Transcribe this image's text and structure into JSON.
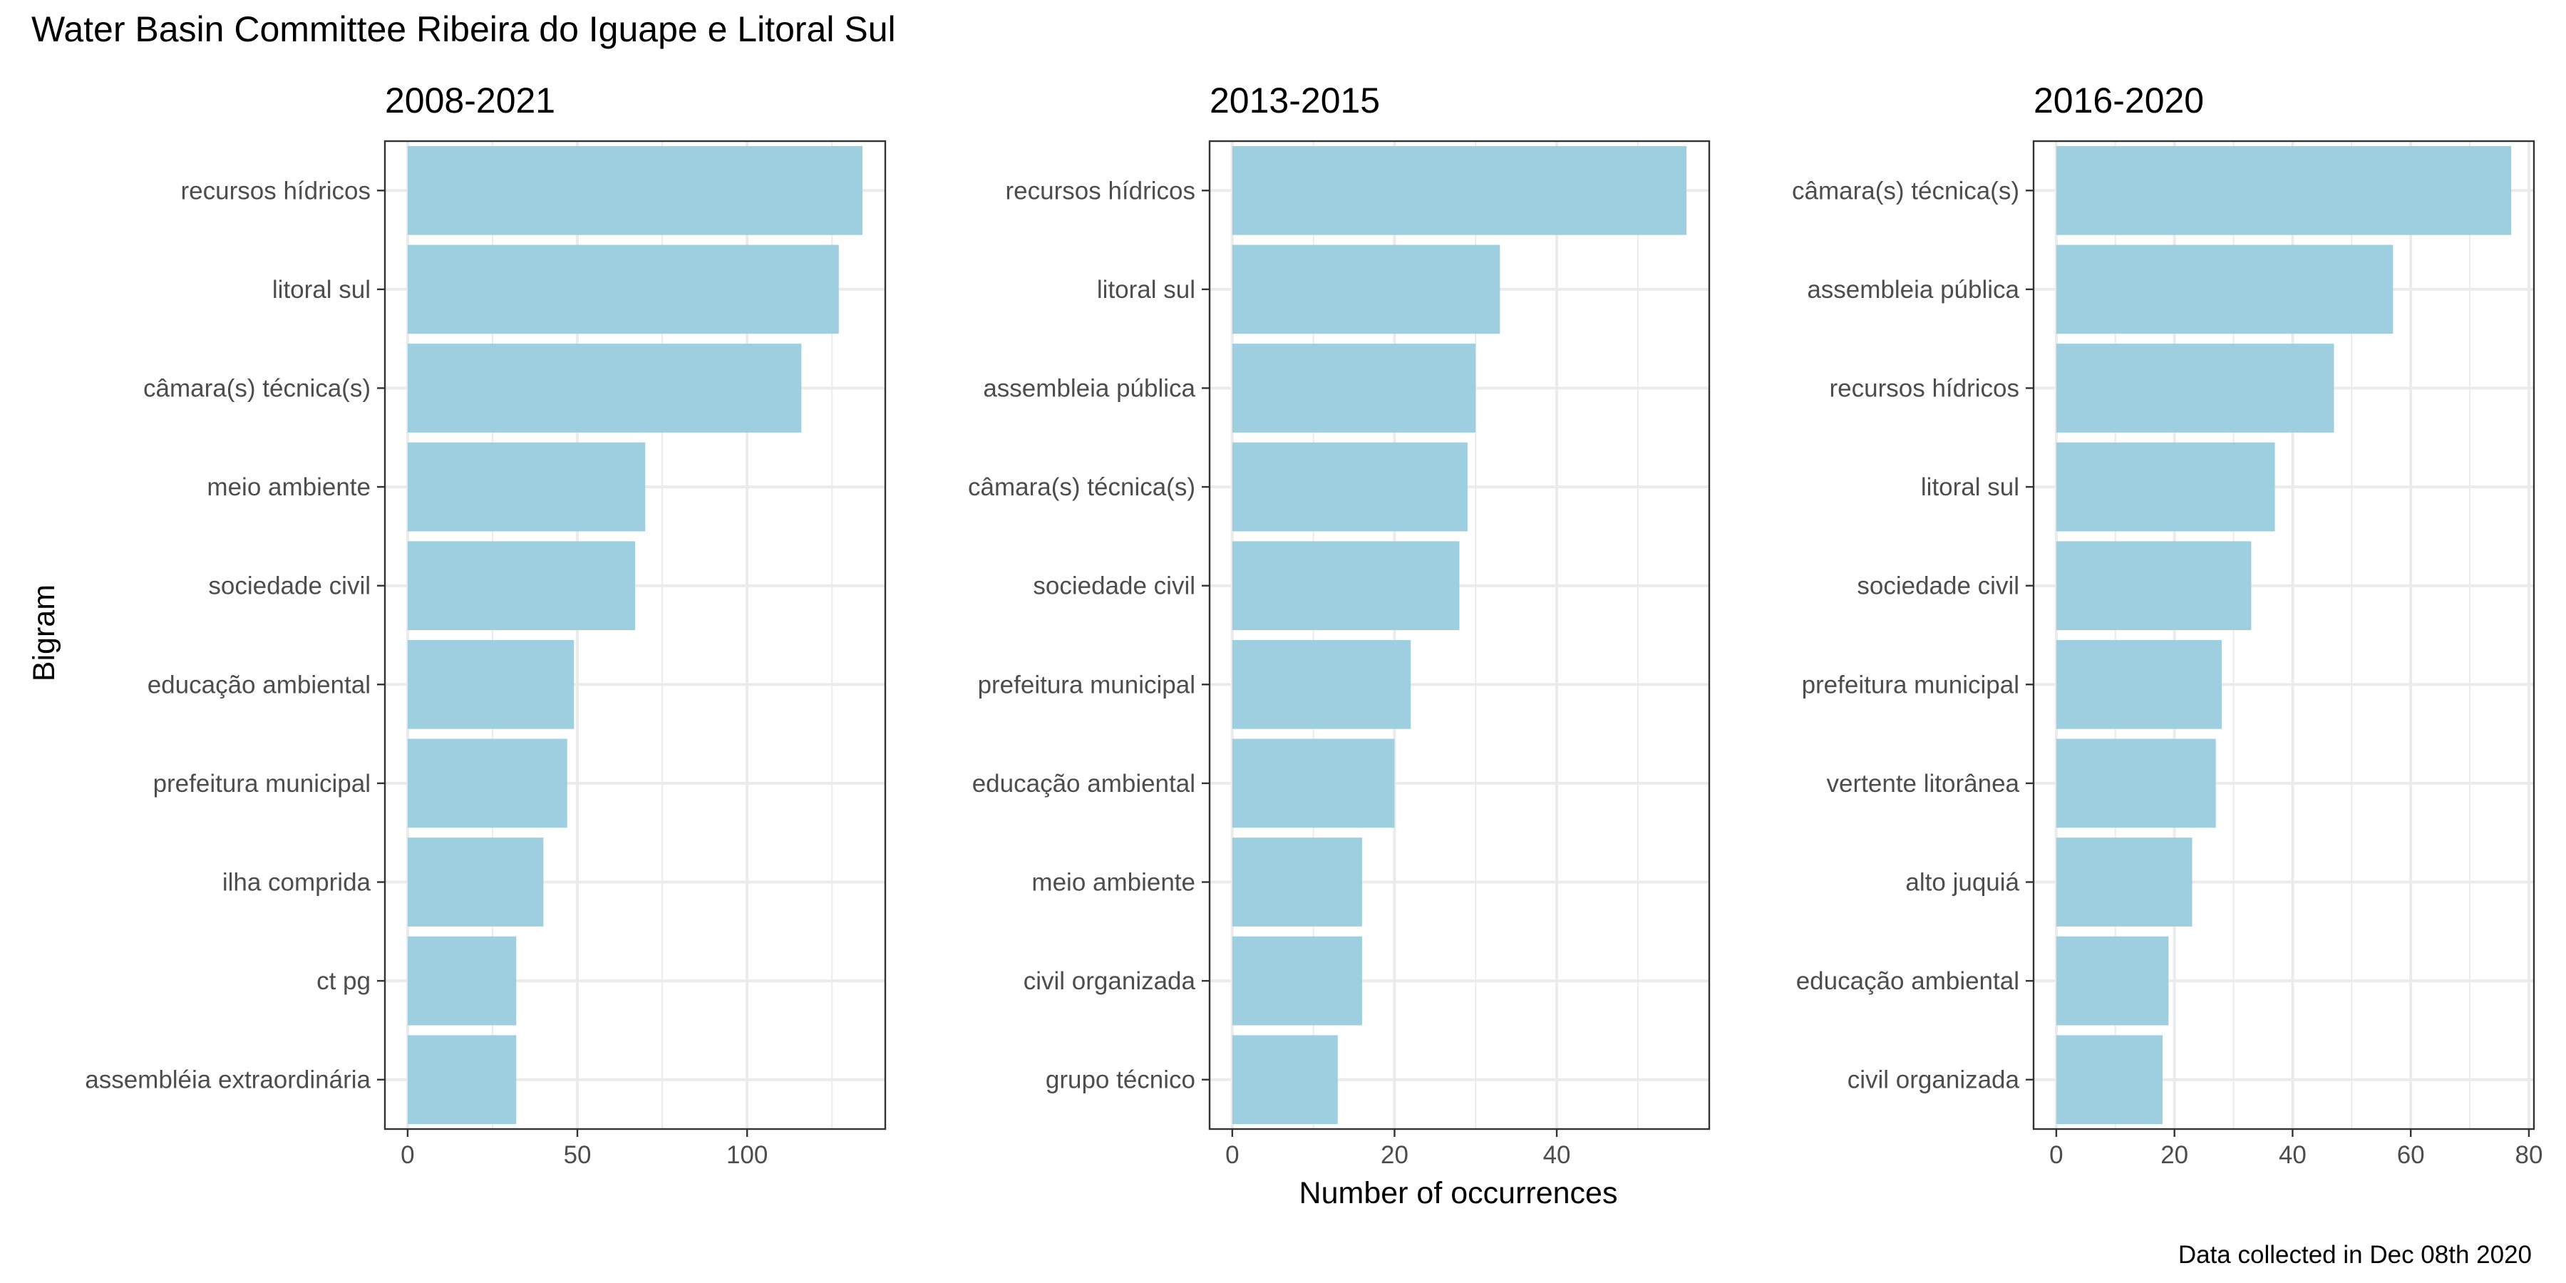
{
  "title": "Water Basin Committee Ribeira do Iguape e Litoral Sul",
  "ylabel": "Bigram",
  "xlabel": "Number of occurrences",
  "caption": "Data collected in Dec 08th 2020",
  "colors": {
    "bar": "#9ECFE1",
    "panel_border": "#333333",
    "grid": "#EBEBEB",
    "tick_text": "#4D4D4D"
  },
  "chart_data": [
    {
      "type": "bar",
      "orientation": "horizontal",
      "title": "2008-2021",
      "categories": [
        "recursos hídricos",
        "litoral sul",
        "câmara(s) técnica(s)",
        "meio ambiente",
        "sociedade civil",
        "educação ambiental",
        "prefeitura municipal",
        "ilha comprida",
        "ct pg",
        "assembléia extraordinária"
      ],
      "values": [
        134,
        127,
        116,
        70,
        67,
        49,
        47,
        40,
        32,
        32
      ],
      "xlim": [
        -6.7,
        140.7
      ],
      "xticks": [
        0,
        50,
        100
      ],
      "grid": true
    },
    {
      "type": "bar",
      "orientation": "horizontal",
      "title": "2013-2015",
      "categories": [
        "recursos hídricos",
        "litoral sul",
        "assembleia pública",
        "câmara(s) técnica(s)",
        "sociedade civil",
        "prefeitura municipal",
        "educação ambiental",
        "meio ambiente",
        "civil organizada",
        "grupo técnico"
      ],
      "values": [
        56,
        33,
        30,
        29,
        28,
        22,
        20,
        16,
        16,
        13
      ],
      "xlim": [
        -2.8,
        58.8
      ],
      "xticks": [
        0,
        20,
        40
      ],
      "grid": true
    },
    {
      "type": "bar",
      "orientation": "horizontal",
      "title": "2016-2020",
      "categories": [
        "câmara(s) técnica(s)",
        "assembleia pública",
        "recursos hídricos",
        "litoral sul",
        "sociedade civil",
        "prefeitura municipal",
        "vertente litorânea",
        "alto juquiá",
        "educação ambiental",
        "civil organizada"
      ],
      "values": [
        77,
        57,
        47,
        37,
        33,
        28,
        27,
        23,
        19,
        18
      ],
      "xlim": [
        -3.85,
        80.85
      ],
      "xticks": [
        0,
        20,
        40,
        60,
        80
      ],
      "grid": true
    }
  ]
}
